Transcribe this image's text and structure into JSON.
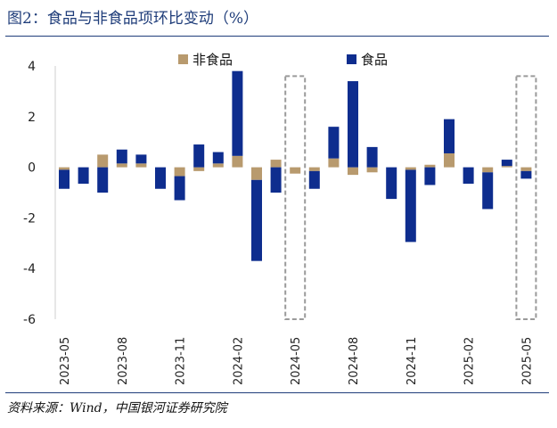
{
  "title": "图2：食品与非食品项环比变动（%）",
  "source": "资料来源：Wind，中国银河证券研究院",
  "colors": {
    "food": "#0e2d8e",
    "nonfood": "#b89a6e",
    "rule": "#1f3d7a",
    "highlight": "#9a9a9a"
  },
  "chart_data": {
    "type": "bar",
    "stacked": true,
    "unit": "%",
    "categories": [
      "2023-05",
      "2023-06",
      "2023-07",
      "2023-08",
      "2023-09",
      "2023-10",
      "2023-11",
      "2023-12",
      "2024-01",
      "2024-02",
      "2024-03",
      "2024-04",
      "2024-05",
      "2024-06",
      "2024-07",
      "2024-08",
      "2024-09",
      "2024-10",
      "2024-11",
      "2024-12",
      "2025-01",
      "2025-02",
      "2025-03",
      "2025-04",
      "2025-05"
    ],
    "tick_labels": [
      "2023-05",
      "2023-08",
      "2023-11",
      "2024-02",
      "2024-05",
      "2024-08",
      "2024-11",
      "2025-02",
      "2025-05"
    ],
    "series": [
      {
        "name": "非食品",
        "key": "nonfood",
        "values": [
          -0.1,
          0.0,
          0.5,
          0.15,
          0.15,
          0.0,
          -0.35,
          -0.15,
          0.15,
          0.45,
          -0.5,
          0.3,
          -0.25,
          -0.15,
          0.35,
          -0.3,
          -0.2,
          0.0,
          -0.1,
          0.1,
          0.55,
          0.0,
          -0.2,
          0.05,
          -0.15
        ]
      },
      {
        "name": "食品",
        "key": "food",
        "values": [
          -0.75,
          -0.65,
          -1.0,
          0.55,
          0.35,
          -0.85,
          -0.95,
          0.9,
          0.45,
          3.35,
          -3.2,
          -1.0,
          0.0,
          -0.7,
          1.25,
          3.4,
          0.8,
          -1.25,
          -2.85,
          -0.7,
          1.35,
          -0.65,
          -1.45,
          0.25,
          -0.3
        ]
      }
    ],
    "highlight_categories": [
      "2024-05",
      "2025-05"
    ],
    "ylim": [
      -6,
      4
    ],
    "yticks": [
      -6,
      -4,
      -2,
      0,
      2,
      4
    ],
    "legend_position": "top"
  }
}
